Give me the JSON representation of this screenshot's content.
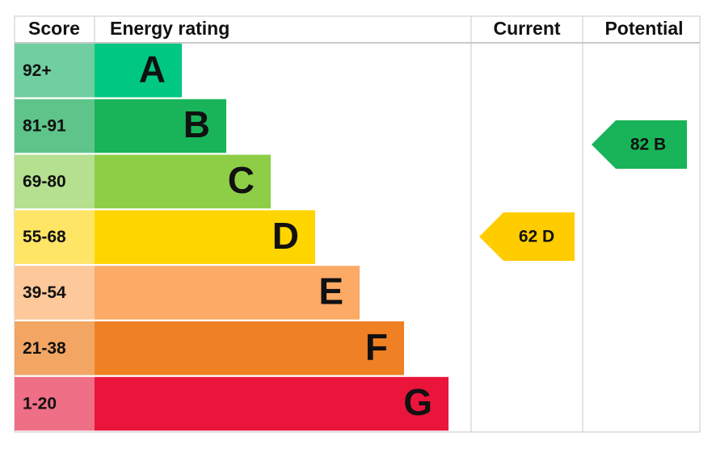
{
  "header": {
    "score": "Score",
    "rating": "Energy rating",
    "current": "Current",
    "potential": "Potential"
  },
  "bands": [
    {
      "score": "92+",
      "letter": "A",
      "color": "#00c781",
      "score_color": "#6fcfa0"
    },
    {
      "score": "81-91",
      "letter": "B",
      "color": "#19b459",
      "score_color": "#5fc48a"
    },
    {
      "score": "69-80",
      "letter": "C",
      "color": "#8dce46",
      "score_color": "#b5e090"
    },
    {
      "score": "55-68",
      "letter": "D",
      "color": "#ffd500",
      "score_color": "#ffe566"
    },
    {
      "score": "39-54",
      "letter": "E",
      "color": "#fcaa65",
      "score_color": "#fdc89a"
    },
    {
      "score": "21-38",
      "letter": "F",
      "color": "#ef8023",
      "score_color": "#f3a563"
    },
    {
      "score": "1-20",
      "letter": "G",
      "color": "#e9153b",
      "score_color": "#ef6f86"
    }
  ],
  "current": {
    "label": "62 D",
    "color": "#ffcc00"
  },
  "potential": {
    "label": "82 B",
    "color": "#19b459"
  }
}
